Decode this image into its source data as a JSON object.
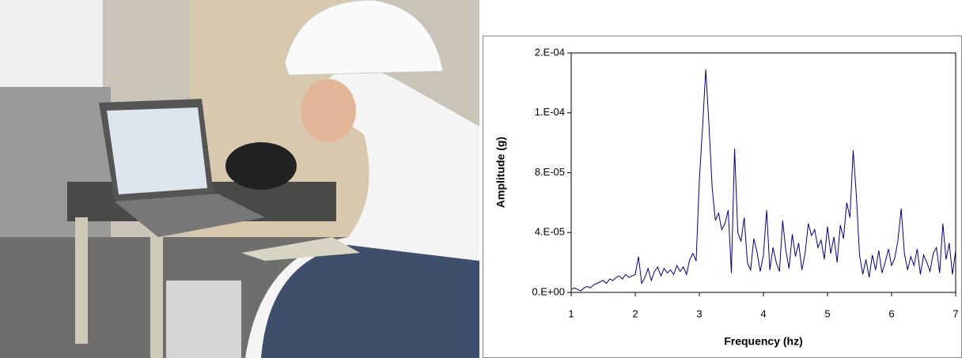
{
  "chart_data": {
    "type": "line",
    "x_label": "Frequency (hz)",
    "y_label": "Amplitude (g)",
    "color": "#000080",
    "xlim": [
      1,
      7
    ],
    "xticks": [
      1,
      2,
      3,
      4,
      5,
      6,
      7
    ],
    "ylim": [
      0,
      0.00016
    ],
    "yticks": [
      {
        "value": 0,
        "label": "0.E+00"
      },
      {
        "value": 4e-05,
        "label": "4.E-05"
      },
      {
        "value": 8e-05,
        "label": "8.E-05"
      },
      {
        "value": 0.00012,
        "label": "1.E-04"
      },
      {
        "value": 0.00016,
        "label": "2.E-04"
      }
    ],
    "x": [
      1.0,
      1.05,
      1.1,
      1.15,
      1.2,
      1.25,
      1.3,
      1.35,
      1.4,
      1.45,
      1.5,
      1.55,
      1.6,
      1.65,
      1.7,
      1.75,
      1.8,
      1.85,
      1.9,
      1.95,
      2.0,
      2.05,
      2.1,
      2.15,
      2.2,
      2.25,
      2.3,
      2.35,
      2.4,
      2.45,
      2.5,
      2.55,
      2.6,
      2.65,
      2.7,
      2.75,
      2.8,
      2.85,
      2.9,
      2.95,
      3.0,
      3.05,
      3.1,
      3.15,
      3.2,
      3.25,
      3.3,
      3.35,
      3.4,
      3.45,
      3.5,
      3.55,
      3.6,
      3.65,
      3.7,
      3.75,
      3.8,
      3.85,
      3.9,
      3.95,
      4.0,
      4.05,
      4.1,
      4.15,
      4.2,
      4.25,
      4.3,
      4.35,
      4.4,
      4.45,
      4.5,
      4.55,
      4.6,
      4.65,
      4.7,
      4.75,
      4.8,
      4.85,
      4.9,
      4.95,
      5.0,
      5.05,
      5.1,
      5.15,
      5.2,
      5.25,
      5.3,
      5.35,
      5.4,
      5.45,
      5.5,
      5.55,
      5.6,
      5.65,
      5.7,
      5.75,
      5.8,
      5.85,
      5.9,
      5.95,
      6.0,
      6.05,
      6.1,
      6.15,
      6.2,
      6.25,
      6.3,
      6.35,
      6.4,
      6.45,
      6.5,
      6.55,
      6.6,
      6.65,
      6.7,
      6.75,
      6.8,
      6.85,
      6.9,
      6.95,
      7.0
    ],
    "values": [
      2e-06,
      3e-06,
      2e-06,
      1e-06,
      3e-06,
      4e-06,
      3e-06,
      5e-06,
      6e-06,
      7e-06,
      8e-06,
      6e-06,
      9e-06,
      8e-06,
      1e-05,
      1.1e-05,
      9e-06,
      1.2e-05,
      1e-05,
      1.1e-05,
      1.2e-05,
      2.4e-05,
      6e-06,
      1e-05,
      1.6e-05,
      8e-06,
      1.4e-05,
      1.7e-05,
      1.1e-05,
      1.6e-05,
      1.3e-05,
      1.5e-05,
      1.2e-05,
      1.8e-05,
      1.4e-05,
      1.7e-05,
      1.2e-05,
      2.2e-05,
      2.6e-05,
      2.1e-05,
      7.5e-05,
      0.00011,
      0.000149,
      0.000112,
      7e-05,
      4.8e-05,
      5.3e-05,
      4.2e-05,
      4.6e-05,
      5.5e-05,
      1.3e-05,
      9.6e-05,
      4e-05,
      3.4e-05,
      5e-05,
      2e-05,
      1.5e-05,
      3.6e-05,
      2.7e-05,
      1.4e-05,
      2.5e-05,
      5.5e-05,
      1.5e-05,
      3e-05,
      2e-05,
      1.4e-05,
      4.8e-05,
      2.8e-05,
      1.6e-05,
      3.9e-05,
      2.4e-05,
      3.3e-05,
      1.5e-05,
      2.6e-05,
      4.6e-05,
      3.8e-05,
      4.2e-05,
      3e-05,
      3.5e-05,
      2.2e-05,
      4.4e-05,
      2.6e-05,
      3.7e-05,
      2e-05,
      4.5e-05,
      3.6e-05,
      6e-05,
      5e-05,
      9.5e-05,
      6.5e-05,
      2.5e-05,
      1.2e-05,
      2.2e-05,
      1e-05,
      2.5e-05,
      1.5e-05,
      2.8e-05,
      1.3e-05,
      2e-05,
      2.9e-05,
      1.8e-05,
      2.3e-05,
      3.5e-05,
      5.6e-05,
      2.6e-05,
      1.5e-05,
      2.4e-05,
      1.8e-05,
      2.9e-05,
      1.2e-05,
      2.5e-05,
      2e-05,
      1.4e-05,
      2.6e-05,
      3e-05,
      1.3e-05,
      4.6e-05,
      2.2e-05,
      3.3e-05,
      1.2e-05,
      2.8e-05
    ]
  }
}
